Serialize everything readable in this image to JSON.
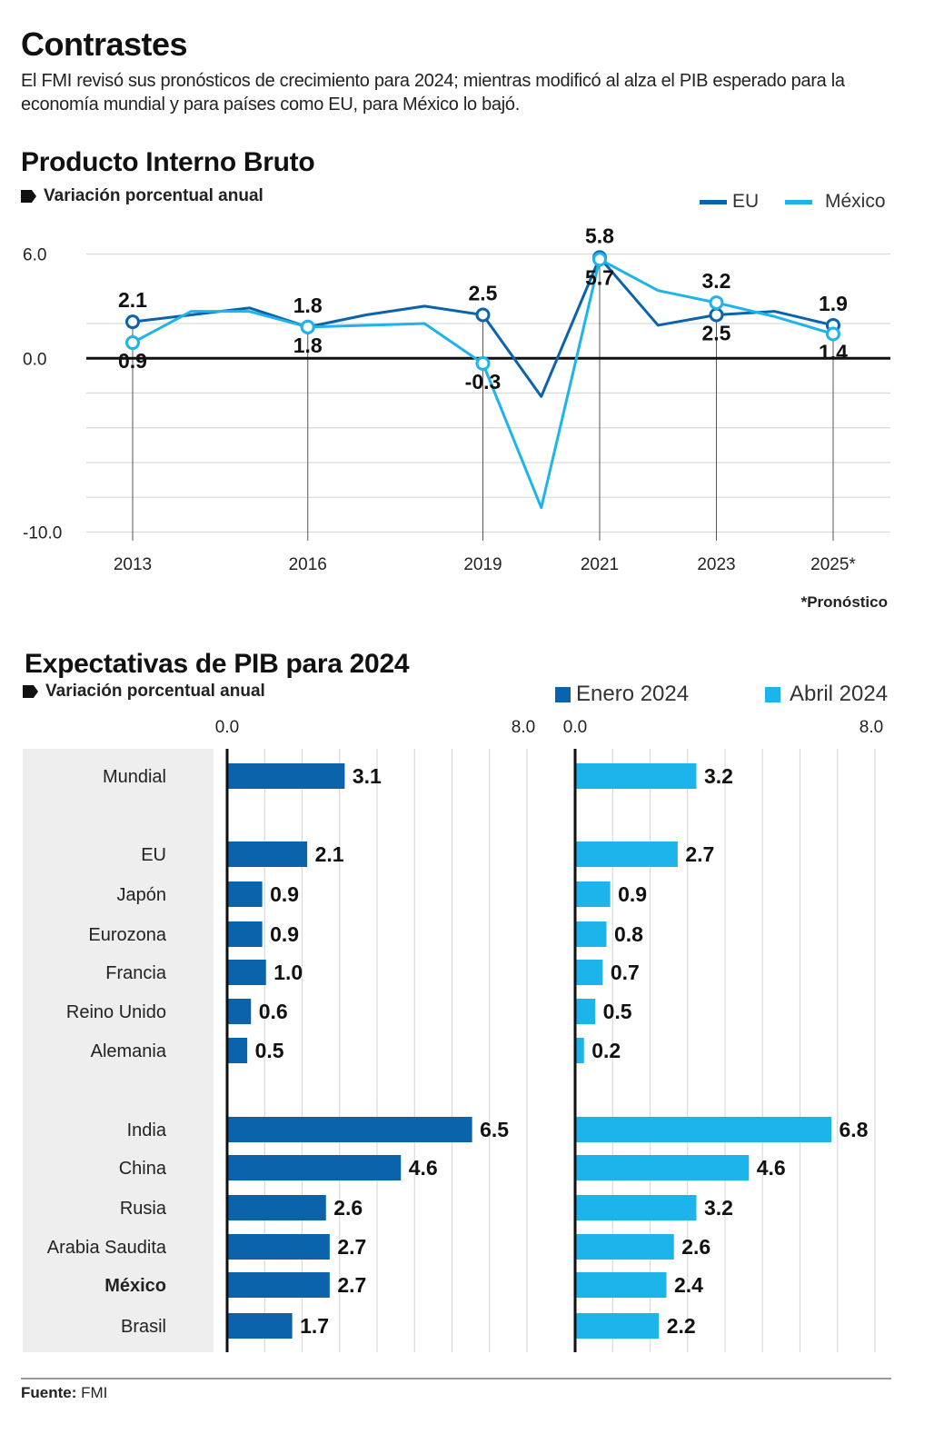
{
  "header": {
    "title": "Contrastes",
    "subtitle": "El FMI revisó sus pronósticos de crecimiento para 2024; mientras modificó al alza el PIB esperado para la economía mundial y para países como EU, para México lo bajó."
  },
  "colors": {
    "eu": "#0b63ac",
    "mexico": "#1cb4ea",
    "axis": "#111111",
    "grid": "#d9d9d9",
    "panel": "#eeeeee"
  },
  "chart_data": [
    {
      "type": "line",
      "title": "Producto Interno Bruto",
      "ylabel": "Variación porcentual anual",
      "footnote": "*Pronóstico",
      "x": [
        2013,
        2014,
        2015,
        2016,
        2017,
        2018,
        2019,
        2020,
        2021,
        2022,
        2023,
        2024,
        2025
      ],
      "x_tick_labels": [
        {
          "x": 2013,
          "label": "2013"
        },
        {
          "x": 2016,
          "label": "2016"
        },
        {
          "x": 2019,
          "label": "2019"
        },
        {
          "x": 2021,
          "label": "2021"
        },
        {
          "x": 2023,
          "label": "2023"
        },
        {
          "x": 2025,
          "label": "2025*"
        }
      ],
      "y_tick_labels": [
        {
          "y": 6.0,
          "label": "6.0"
        },
        {
          "y": 0.0,
          "label": "0.0"
        },
        {
          "y": -10.0,
          "label": "-10.0"
        }
      ],
      "ylim": [
        -10.5,
        6.5
      ],
      "gridlines": [
        6.0,
        2.0,
        -2.0,
        -4.0,
        -6.0,
        -8.0,
        -10.0
      ],
      "zero_line": 0.0,
      "legend": {
        "placement": "top-right",
        "entries": [
          "EU",
          "México"
        ]
      },
      "series": [
        {
          "name": "EU",
          "key": "eu",
          "values": [
            2.1,
            2.5,
            2.9,
            1.8,
            2.5,
            3.0,
            2.5,
            -2.2,
            5.8,
            1.9,
            2.5,
            2.7,
            1.9
          ],
          "labels": [
            {
              "x": 2013,
              "text": "2.1",
              "pos": "above"
            },
            {
              "x": 2016,
              "text": "1.8",
              "pos": "above"
            },
            {
              "x": 2019,
              "text": "2.5",
              "pos": "above"
            },
            {
              "x": 2021,
              "text": "5.8",
              "pos": "above"
            },
            {
              "x": 2023,
              "text": "2.5",
              "pos": "below"
            },
            {
              "x": 2025,
              "text": "1.9",
              "pos": "above"
            }
          ]
        },
        {
          "name": "México",
          "key": "mexico",
          "values": [
            0.9,
            2.7,
            2.7,
            1.8,
            1.9,
            2.0,
            -0.3,
            -8.6,
            5.7,
            3.9,
            3.2,
            2.4,
            1.4
          ],
          "labels": [
            {
              "x": 2013,
              "text": "0.9",
              "pos": "below"
            },
            {
              "x": 2016,
              "text": "1.8",
              "pos": "below"
            },
            {
              "x": 2019,
              "text": "-0.3",
              "pos": "below"
            },
            {
              "x": 2021,
              "text": "5.7",
              "pos": "below"
            },
            {
              "x": 2023,
              "text": "3.2",
              "pos": "above"
            },
            {
              "x": 2025,
              "text": "1.4",
              "pos": "below"
            }
          ]
        }
      ]
    },
    {
      "type": "bar",
      "orientation": "horizontal",
      "title": "Expectativas de PIB para 2024",
      "ylabel": "Variación porcentual anual",
      "xlim": [
        0,
        8
      ],
      "axis_labels": {
        "min": "0.0",
        "max": "8.0"
      },
      "legend": {
        "placement": "top-right",
        "entries": [
          "Enero 2024",
          "Abril 2024"
        ]
      },
      "categories": [
        "Mundial",
        "EU",
        "Japón",
        "Eurozona",
        "Francia",
        "Reino Unido",
        "Alemania",
        "India",
        "China",
        "Rusia",
        "Arabia Saudita",
        "México",
        "Brasil"
      ],
      "highlight": "México",
      "groups": [
        [
          0
        ],
        [
          1,
          2,
          3,
          4,
          5,
          6
        ],
        [
          7,
          8,
          9,
          10,
          11,
          12
        ]
      ],
      "series": [
        {
          "name": "Enero 2024",
          "key": "eu",
          "values": [
            3.1,
            2.1,
            0.9,
            0.9,
            1.0,
            0.6,
            0.5,
            6.5,
            4.6,
            2.6,
            2.7,
            2.7,
            1.7
          ],
          "labels": [
            "3.1",
            "2.1",
            "0.9",
            "0.9",
            "1.0",
            "0.6",
            "0.5",
            "6.5",
            "4.6",
            "2.6",
            "2.7",
            "2.7",
            "1.7"
          ]
        },
        {
          "name": "Abril 2024",
          "key": "mexico",
          "values": [
            3.2,
            2.7,
            0.9,
            0.8,
            0.7,
            0.5,
            0.2,
            6.8,
            4.6,
            3.2,
            2.6,
            2.4,
            2.2
          ],
          "labels": [
            "3.2",
            "2.7",
            "0.9",
            "0.8",
            "0.7",
            "0.5",
            "0.2",
            "6.8",
            "4.6",
            "3.2",
            "2.6",
            "2.4",
            "2.2"
          ]
        }
      ]
    }
  ],
  "source": {
    "label": "Fuente:",
    "value": "FMI"
  }
}
